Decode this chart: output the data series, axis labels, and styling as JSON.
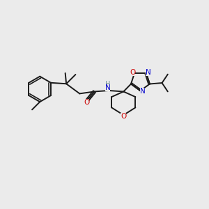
{
  "background_color": "#ebebeb",
  "bond_color": "#1a1a1a",
  "atom_colors": {
    "O": "#cc0000",
    "N": "#0000cc",
    "H": "#6b8e8e",
    "C": "#1a1a1a"
  },
  "fig_size": [
    3.0,
    3.0
  ],
  "dpi": 100
}
